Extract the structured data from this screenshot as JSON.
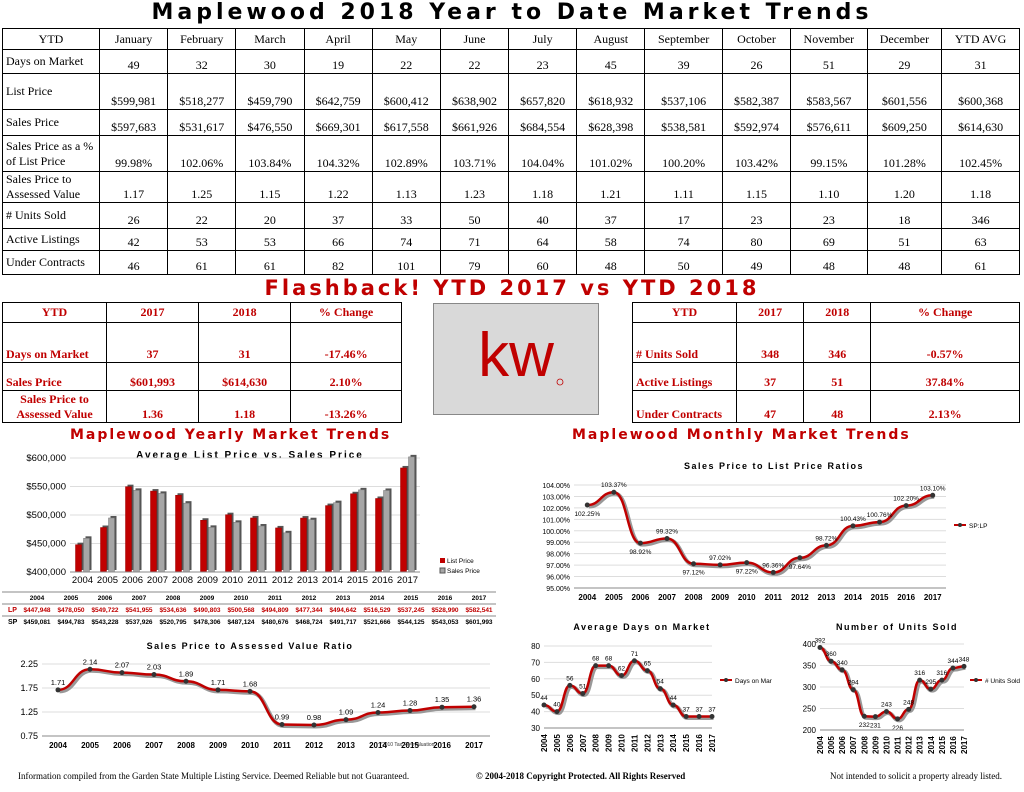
{
  "title": "Maplewood 2018 Year to Date Market Trends",
  "table": {
    "headers": [
      "YTD",
      "January",
      "February",
      "March",
      "April",
      "May",
      "June",
      "July",
      "August",
      "September",
      "October",
      "November",
      "December",
      "YTD AVG"
    ],
    "rows": [
      {
        "label": "Days on Market",
        "values": [
          "49",
          "32",
          "30",
          "19",
          "22",
          "22",
          "23",
          "45",
          "39",
          "26",
          "51",
          "29",
          "31"
        ]
      },
      {
        "label": "List Price",
        "values": [
          "$599,981",
          "$518,277",
          "$459,790",
          "$642,759",
          "$600,412",
          "$638,902",
          "$657,820",
          "$618,932",
          "$537,106",
          "$582,387",
          "$583,567",
          "$601,556",
          "$600,368"
        ]
      },
      {
        "label": "Sales Price",
        "values": [
          "$597,683",
          "$531,617",
          "$476,550",
          "$669,301",
          "$617,558",
          "$661,926",
          "$684,554",
          "$628,398",
          "$538,581",
          "$592,974",
          "$576,611",
          "$609,250",
          "$614,630"
        ]
      },
      {
        "label": "Sales Price as a % of List Price",
        "values": [
          "99.98%",
          "102.06%",
          "103.84%",
          "104.32%",
          "102.89%",
          "103.71%",
          "104.04%",
          "101.02%",
          "100.20%",
          "103.42%",
          "99.15%",
          "101.28%",
          "102.45%"
        ]
      },
      {
        "label": "Sales Price to Assessed Value",
        "values": [
          "1.17",
          "1.25",
          "1.15",
          "1.22",
          "1.13",
          "1.23",
          "1.18",
          "1.21",
          "1.11",
          "1.15",
          "1.10",
          "1.20",
          "1.18"
        ]
      },
      {
        "label": "# Units Sold",
        "values": [
          "26",
          "22",
          "20",
          "37",
          "33",
          "50",
          "40",
          "37",
          "17",
          "23",
          "23",
          "18",
          "346"
        ]
      },
      {
        "label": "Active Listings",
        "values": [
          "42",
          "53",
          "53",
          "66",
          "74",
          "71",
          "64",
          "58",
          "74",
          "80",
          "69",
          "51",
          "63"
        ]
      },
      {
        "label": "Under Contracts",
        "values": [
          "46",
          "61",
          "61",
          "82",
          "101",
          "79",
          "60",
          "48",
          "50",
          "49",
          "48",
          "48",
          "61"
        ]
      }
    ]
  },
  "flashback": "Flashback!  YTD 2017 vs YTD 2018",
  "compare_left": {
    "headers": [
      "YTD",
      "2017",
      "2018",
      "% Change"
    ],
    "rows": [
      [
        "Days on Market",
        "37",
        "31",
        "-17.46%"
      ],
      [
        "Sales Price",
        "$601,993",
        "$614,630",
        "2.10%"
      ],
      [
        "Sales Price to Assessed Value",
        "1.36",
        "1.18",
        "-13.26%"
      ]
    ]
  },
  "compare_right": {
    "headers": [
      "YTD",
      "2017",
      "2018",
      "% Change"
    ],
    "rows": [
      [
        "# Units Sold",
        "348",
        "346",
        "-0.57%"
      ],
      [
        "Active Listings",
        "37",
        "51",
        "37.84%"
      ],
      [
        "Under Contracts",
        "47",
        "48",
        "2.13%"
      ]
    ]
  },
  "logo_text": "kw",
  "yearly_title": "Maplewood Yearly Market Trends",
  "monthly_title": "Maplewood Monthly Market Trends",
  "footer": {
    "left": "Information compiled from the Garden State Multiple Listing Service.  Deemed Reliable but not Guaranteed.",
    "center": "© 2004-2018 Copyright Protected.  All Rights Reserved",
    "right": "Not intended to solicit a property already listed."
  },
  "colors": {
    "red": "#c00000",
    "gray": "#a6a6a6"
  },
  "chart_data": [
    {
      "type": "bar",
      "title": "Average List Price vs. Sales Price",
      "categories": [
        "2004",
        "2005",
        "2006",
        "2007",
        "2008",
        "2009",
        "2010",
        "2011",
        "2012",
        "2013",
        "2014",
        "2015",
        "2016",
        "2017"
      ],
      "series": [
        {
          "name": "List Price",
          "values": [
            447948,
            478050,
            549722,
            541955,
            534636,
            490803,
            500568,
            494809,
            477344,
            494642,
            516529,
            537245,
            528990,
            582541
          ],
          "labels": [
            "$447,948",
            "$478,050",
            "$549,722",
            "$541,955",
            "$534,636",
            "$490,803",
            "$500,568",
            "$494,809",
            "$477,344",
            "$494,642",
            "$516,529",
            "$537,245",
            "$528,990",
            "$582,541"
          ]
        },
        {
          "name": "Sales Price",
          "values": [
            459081,
            494783,
            543228,
            537926,
            520795,
            478306,
            487124,
            480676,
            468724,
            491717,
            521666,
            544125,
            543053,
            601993
          ],
          "labels": [
            "$459,081",
            "$494,783",
            "$543,228",
            "$537,926",
            "$520,795",
            "$478,306",
            "$487,124",
            "$480,676",
            "$468,724",
            "$491,717",
            "$521,666",
            "$544,125",
            "$543,053",
            "$601,993"
          ]
        }
      ],
      "table_keys": [
        "LP",
        "SP"
      ],
      "yticks": [
        "$400,000",
        "$450,000",
        "$500,000",
        "$550,000",
        "$600,000"
      ],
      "ylim": [
        400000,
        600000
      ]
    },
    {
      "type": "line",
      "title": "Sales Price to Assessed Value Ratio",
      "x": [
        "2004",
        "2005",
        "2006",
        "2007",
        "2008",
        "2009",
        "2010",
        "2011",
        "2012",
        "2013",
        "2014",
        "2015",
        "2016",
        "2017"
      ],
      "values": [
        1.71,
        2.14,
        2.07,
        2.03,
        1.89,
        1.71,
        1.68,
        0.99,
        0.98,
        1.09,
        1.24,
        1.28,
        1.35,
        1.36
      ],
      "labels": [
        "1.71",
        "2.14",
        "2.07",
        "2.03",
        "1.89",
        "1.71",
        "1.68",
        "0.99",
        "0.98",
        "1.09",
        "1.24",
        "1.28",
        "1.35",
        "1.36"
      ],
      "yticks": [
        "0.75",
        "1.25",
        "1.75",
        "2.25"
      ],
      "ylim": [
        0.75,
        2.25
      ],
      "note": "*2010 Tax Re-evaluation"
    },
    {
      "type": "line",
      "title": "Sales Price to List Price Ratios",
      "x": [
        "2004",
        "2005",
        "2006",
        "2007",
        "2008",
        "2009",
        "2010",
        "2011",
        "2012",
        "2013",
        "2014",
        "2015",
        "2016",
        "2017"
      ],
      "values": [
        102.25,
        103.37,
        98.92,
        99.32,
        97.12,
        97.02,
        97.22,
        96.36,
        97.64,
        98.72,
        100.43,
        100.76,
        102.2,
        103.1
      ],
      "labels": [
        "102.25%",
        "103.37%",
        "98.92%",
        "99.32%",
        "97.12%",
        "97.02%",
        "97.22%",
        "96.36%",
        "97.64%",
        "98.72%",
        "100.43%",
        "100.76%",
        "102.20%",
        "103.10%"
      ],
      "yticks": [
        "95.00%",
        "96.00%",
        "97.00%",
        "98.00%",
        "99.00%",
        "100.00%",
        "101.00%",
        "102.00%",
        "103.00%",
        "104.00%"
      ],
      "ylim": [
        95,
        104
      ],
      "legend": "SP:LP"
    },
    {
      "type": "line",
      "title": "Average Days on Market",
      "x": [
        "2004",
        "2005",
        "2006",
        "2007",
        "2008",
        "2009",
        "2010",
        "2011",
        "2012",
        "2013",
        "2014",
        "2015",
        "2016",
        "2017"
      ],
      "values": [
        44,
        40,
        56,
        51,
        68,
        68,
        62,
        71,
        65,
        54,
        44,
        37,
        37,
        37
      ],
      "labels": [
        "44",
        "40",
        "56",
        "51",
        "68",
        "68",
        "62",
        "71",
        "65",
        "54",
        "44",
        "37",
        "37",
        "37"
      ],
      "yticks": [
        "30",
        "40",
        "50",
        "60",
        "70",
        "80"
      ],
      "ylim": [
        30,
        80
      ],
      "legend": "Days on Market"
    },
    {
      "type": "line",
      "title": "Number of Units Sold",
      "x": [
        "2004",
        "2005",
        "2006",
        "2007",
        "2008",
        "2009",
        "2010",
        "2011",
        "2012",
        "2013",
        "2014",
        "2015",
        "2016",
        "2017"
      ],
      "values": [
        392,
        360,
        340,
        294,
        232,
        231,
        243,
        226,
        248,
        316,
        295,
        316,
        344,
        348
      ],
      "labels": [
        "392",
        "360",
        "340",
        "294",
        "232",
        "231",
        "243",
        "226",
        "248",
        "316",
        "295",
        "316",
        "344",
        "348"
      ],
      "yticks": [
        "200",
        "250",
        "300",
        "350",
        "400"
      ],
      "ylim": [
        200,
        400
      ],
      "legend": "# Units Sold"
    }
  ]
}
